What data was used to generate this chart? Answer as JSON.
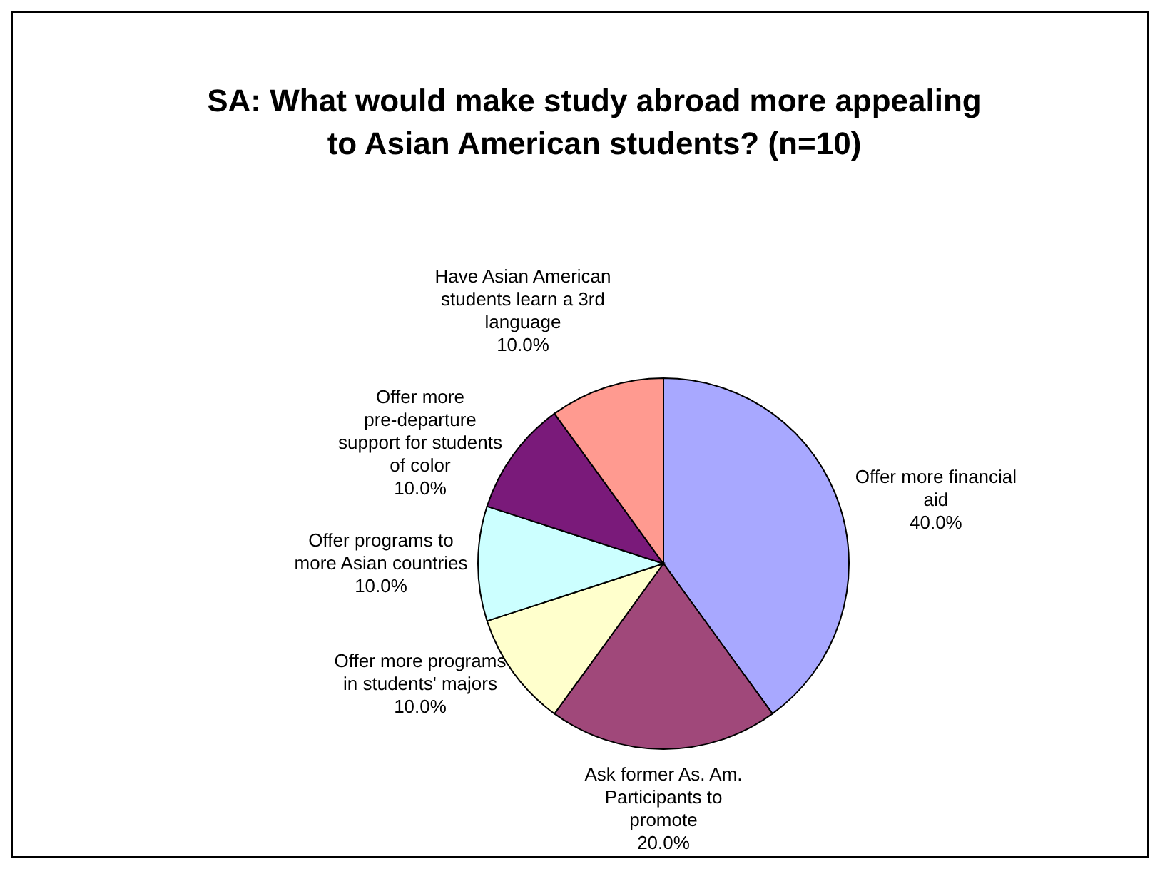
{
  "chart_data": {
    "type": "pie",
    "title": "SA:  What would make study abroad more appealing to Asian American students? (n=10)",
    "categories": [
      "Offer more financial aid",
      "Ask former As. Am. Participants to promote",
      "Offer more programs in students' majors",
      "Offer programs to more Asian countries",
      "Offer more pre-departure support for students of color",
      "Have Asian American students learn a 3rd language"
    ],
    "values": [
      40,
      20,
      10,
      10,
      10,
      10
    ],
    "value_labels": [
      "40.0%",
      "20.0%",
      "10.0%",
      "10.0%",
      "10.0%",
      "10.0%"
    ],
    "colors": [
      "#a8a8ff",
      "#a0487a",
      "#ffffcc",
      "#ccffff",
      "#7a1a7a",
      "#ff9a90"
    ],
    "legend": false
  }
}
